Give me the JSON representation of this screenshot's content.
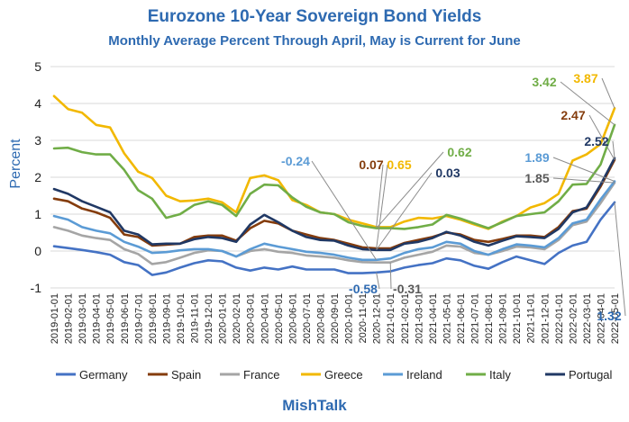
{
  "header": {
    "title": "Eurozone 10-Year Sovereign Bond Yields",
    "subtitle": "Monthly Average Percent Through April, May is Current for June"
  },
  "footer": {
    "brand": "MishTalk"
  },
  "chart_data": {
    "type": "line",
    "title": "Eurozone 10-Year Sovereign Bond Yields",
    "subtitle": "Monthly Average Percent Through April, May is Current for June",
    "xlabel": "",
    "ylabel": "Percent",
    "ylim": [
      -1,
      5
    ],
    "yticks": [
      -1,
      0,
      1,
      2,
      3,
      4,
      5
    ],
    "grid": "horizontal",
    "legend_position": "bottom",
    "categories": [
      "2019-01-01",
      "2019-02-01",
      "2019-03-01",
      "2019-04-01",
      "2019-05-01",
      "2019-06-01",
      "2019-07-01",
      "2019-08-01",
      "2019-09-01",
      "2019-10-01",
      "2019-11-01",
      "2019-12-01",
      "2020-01-01",
      "2020-02-01",
      "2020-03-01",
      "2020-04-01",
      "2020-05-01",
      "2020-06-01",
      "2020-07-01",
      "2020-08-01",
      "2020-09-01",
      "2020-10-01",
      "2020-11-01",
      "2020-12-01",
      "2021-01-01",
      "2021-02-01",
      "2021-03-01",
      "2021-04-01",
      "2021-05-01",
      "2021-06-01",
      "2021-07-01",
      "2021-08-01",
      "2021-09-01",
      "2021-10-01",
      "2021-11-01",
      "2021-12-01",
      "2022-01-01",
      "2022-02-01",
      "2022-03-01",
      "2022-04-01",
      "2022-05-01"
    ],
    "series": [
      {
        "name": "Germany",
        "color": "#4472c4",
        "values": [
          0.13,
          0.08,
          0.03,
          -0.03,
          -0.1,
          -0.3,
          -0.38,
          -0.65,
          -0.58,
          -0.45,
          -0.33,
          -0.25,
          -0.28,
          -0.45,
          -0.53,
          -0.45,
          -0.5,
          -0.42,
          -0.5,
          -0.5,
          -0.5,
          -0.6,
          -0.6,
          -0.58,
          -0.55,
          -0.45,
          -0.38,
          -0.33,
          -0.2,
          -0.25,
          -0.4,
          -0.48,
          -0.3,
          -0.15,
          -0.25,
          -0.35,
          -0.05,
          0.15,
          0.25,
          0.85,
          1.32
        ]
      },
      {
        "name": "Spain",
        "color": "#843c0c",
        "values": [
          1.42,
          1.35,
          1.15,
          1.05,
          0.9,
          0.45,
          0.38,
          0.15,
          0.17,
          0.2,
          0.38,
          0.42,
          0.42,
          0.28,
          0.62,
          0.82,
          0.75,
          0.55,
          0.45,
          0.35,
          0.3,
          0.2,
          0.1,
          0.07,
          0.07,
          0.22,
          0.3,
          0.38,
          0.5,
          0.45,
          0.3,
          0.25,
          0.33,
          0.42,
          0.42,
          0.38,
          0.65,
          1.08,
          1.15,
          1.75,
          2.47
        ]
      },
      {
        "name": "France",
        "color": "#a5a5a5",
        "values": [
          0.65,
          0.55,
          0.42,
          0.35,
          0.3,
          0.05,
          -0.08,
          -0.35,
          -0.3,
          -0.18,
          -0.05,
          0.02,
          0.0,
          -0.15,
          0.0,
          0.05,
          -0.02,
          -0.05,
          -0.12,
          -0.15,
          -0.18,
          -0.25,
          -0.3,
          -0.31,
          -0.31,
          -0.18,
          -0.1,
          -0.02,
          0.15,
          0.12,
          -0.05,
          -0.1,
          0.0,
          0.12,
          0.1,
          0.05,
          0.3,
          0.7,
          0.8,
          1.3,
          1.85
        ]
      },
      {
        "name": "Greece",
        "color": "#f2b800",
        "values": [
          4.2,
          3.85,
          3.75,
          3.42,
          3.35,
          2.65,
          2.15,
          1.98,
          1.5,
          1.35,
          1.37,
          1.42,
          1.32,
          1.05,
          1.98,
          2.05,
          1.92,
          1.38,
          1.25,
          1.05,
          1.0,
          0.85,
          0.75,
          0.65,
          0.65,
          0.8,
          0.9,
          0.88,
          0.95,
          0.85,
          0.72,
          0.6,
          0.8,
          0.95,
          1.18,
          1.3,
          1.55,
          2.45,
          2.62,
          2.9,
          3.87
        ]
      },
      {
        "name": "Ireland",
        "color": "#5b9bd5",
        "values": [
          0.95,
          0.85,
          0.65,
          0.55,
          0.48,
          0.25,
          0.12,
          -0.05,
          -0.03,
          0.02,
          0.05,
          0.05,
          0.0,
          -0.15,
          0.05,
          0.2,
          0.12,
          0.05,
          -0.02,
          -0.05,
          -0.1,
          -0.18,
          -0.24,
          -0.24,
          -0.2,
          -0.05,
          0.05,
          0.1,
          0.25,
          0.2,
          0.0,
          -0.1,
          0.05,
          0.18,
          0.15,
          0.1,
          0.35,
          0.75,
          0.85,
          1.4,
          1.89
        ]
      },
      {
        "name": "Italy",
        "color": "#70ad47",
        "values": [
          2.78,
          2.8,
          2.68,
          2.62,
          2.62,
          2.2,
          1.65,
          1.42,
          0.9,
          1.0,
          1.25,
          1.35,
          1.25,
          0.95,
          1.55,
          1.8,
          1.78,
          1.45,
          1.2,
          1.05,
          1.0,
          0.78,
          0.68,
          0.62,
          0.62,
          0.6,
          0.65,
          0.72,
          0.98,
          0.88,
          0.75,
          0.62,
          0.78,
          0.95,
          1.0,
          1.05,
          1.35,
          1.8,
          1.82,
          2.35,
          3.42
        ]
      },
      {
        "name": "Portugal",
        "color": "#203864",
        "values": [
          1.68,
          1.55,
          1.35,
          1.2,
          1.05,
          0.55,
          0.45,
          0.18,
          0.2,
          0.2,
          0.32,
          0.38,
          0.35,
          0.25,
          0.72,
          0.98,
          0.78,
          0.55,
          0.38,
          0.3,
          0.28,
          0.15,
          0.05,
          0.03,
          0.03,
          0.2,
          0.25,
          0.35,
          0.52,
          0.42,
          0.25,
          0.15,
          0.28,
          0.4,
          0.38,
          0.35,
          0.6,
          1.05,
          1.18,
          1.8,
          2.52
        ]
      }
    ],
    "annotations": [
      {
        "text": "3.42",
        "series": "Italy",
        "index": 40,
        "color": "#70ad47"
      },
      {
        "text": "3.87",
        "series": "Greece",
        "index": 40,
        "color": "#f2b800"
      },
      {
        "text": "2.47",
        "series": "Spain",
        "index": 40,
        "color": "#843c0c"
      },
      {
        "text": "2.52",
        "series": "Portugal",
        "index": 40,
        "color": "#203864"
      },
      {
        "text": "1.89",
        "series": "Ireland",
        "index": 40,
        "color": "#5b9bd5"
      },
      {
        "text": "1.85",
        "series": "France",
        "index": 40,
        "color": "#595959"
      },
      {
        "text": "1.32",
        "series": "Germany",
        "index": 40,
        "color": "#2e6ab1"
      },
      {
        "text": "-0.24",
        "series": "Ireland",
        "index": 23,
        "color": "#5b9bd5"
      },
      {
        "text": "0.07",
        "series": "Spain",
        "index": 23,
        "color": "#843c0c"
      },
      {
        "text": "0.65",
        "series": "Greece",
        "index": 23,
        "color": "#f2b800"
      },
      {
        "text": "0.62",
        "series": "Italy",
        "index": 23,
        "color": "#70ad47"
      },
      {
        "text": "0.03",
        "series": "Portugal",
        "index": 23,
        "color": "#203864"
      },
      {
        "text": "-0.58",
        "series": "Germany",
        "index": 23,
        "color": "#2e6ab1"
      },
      {
        "text": "-0.31",
        "series": "France",
        "index": 24,
        "color": "#595959"
      }
    ]
  }
}
